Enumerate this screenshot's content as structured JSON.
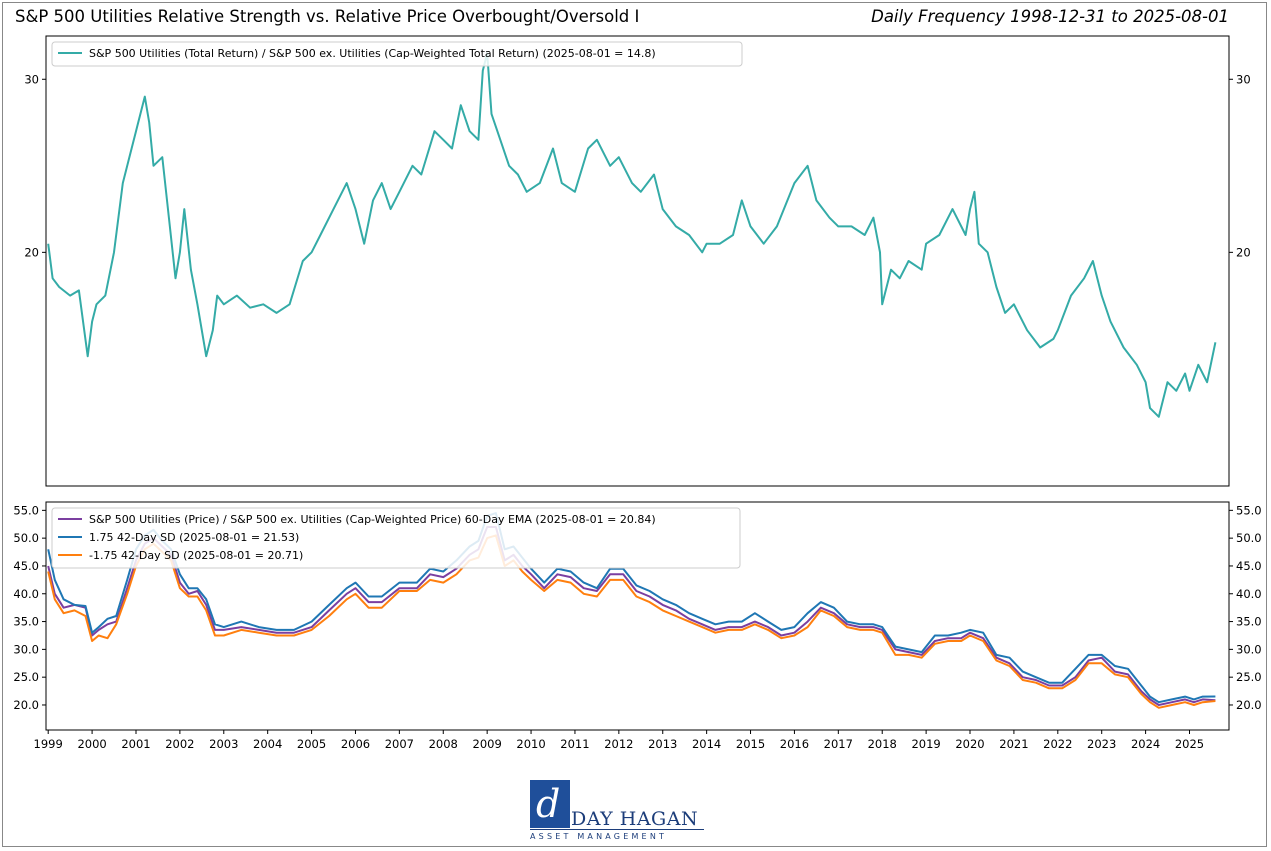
{
  "header": {
    "title": "S&P 500 Utilities Relative Strength vs. Relative Price Overbought/Oversold I",
    "frequency": "Daily Frequency 1998-12-31 to 2025-08-01"
  },
  "logo": {
    "name": "DAY HAGAN",
    "subtitle": "ASSET MANAGEMENT"
  },
  "colors": {
    "teal": "#34aba7",
    "purple": "#7b3fa0",
    "blue": "#1f77b4",
    "orange": "#ff7f0e",
    "brand": "#1c3d7a"
  },
  "chart_data": [
    {
      "type": "line",
      "panel": "top",
      "y_ticks": [
        20,
        30
      ],
      "ylim": [
        6.5,
        32.5
      ],
      "xlim": [
        1998.95,
        2025.9
      ],
      "grid": false,
      "legend": "top-left",
      "series": [
        {
          "name": "S&P 500 Utilities (Total Return) / S&P 500 ex. Utilities (Cap-Weighted Total Return) (2025-08-01 = 14.8)",
          "color": "#34aba7",
          "x": [
            1999.0,
            1999.1,
            1999.25,
            1999.5,
            1999.7,
            1999.9,
            2000.0,
            2000.1,
            2000.3,
            2000.5,
            2000.7,
            2000.9,
            2001.0,
            2001.2,
            2001.3,
            2001.4,
            2001.6,
            2001.75,
            2001.9,
            2002.0,
            2002.1,
            2002.25,
            2002.4,
            2002.6,
            2002.75,
            2002.85,
            2003.0,
            2003.3,
            2003.6,
            2003.9,
            2004.2,
            2004.5,
            2004.8,
            2005.0,
            2005.2,
            2005.5,
            2005.8,
            2006.0,
            2006.2,
            2006.4,
            2006.6,
            2006.8,
            2007.0,
            2007.3,
            2007.5,
            2007.8,
            2008.0,
            2008.2,
            2008.4,
            2008.6,
            2008.8,
            2008.9,
            2009.0,
            2009.1,
            2009.3,
            2009.5,
            2009.7,
            2009.9,
            2010.2,
            2010.5,
            2010.7,
            2011.0,
            2011.3,
            2011.5,
            2011.8,
            2012.0,
            2012.3,
            2012.5,
            2012.8,
            2013.0,
            2013.3,
            2013.6,
            2013.9,
            2014.0,
            2014.3,
            2014.6,
            2014.8,
            2015.0,
            2015.3,
            2015.6,
            2016.0,
            2016.3,
            2016.5,
            2016.8,
            2017.0,
            2017.3,
            2017.6,
            2017.8,
            2017.95,
            2018.0,
            2018.2,
            2018.4,
            2018.6,
            2018.9,
            2019.0,
            2019.3,
            2019.6,
            2019.9,
            2020.0,
            2020.1,
            2020.2,
            2020.4,
            2020.6,
            2020.8,
            2021.0,
            2021.3,
            2021.6,
            2021.9,
            2022.0,
            2022.3,
            2022.6,
            2022.8,
            2023.0,
            2023.2,
            2023.5,
            2023.8,
            2024.0,
            2024.1,
            2024.3,
            2024.5,
            2024.7,
            2024.9,
            2025.0,
            2025.2,
            2025.4,
            2025.59
          ],
          "y": [
            20.5,
            18.5,
            18.0,
            17.5,
            17.8,
            14.0,
            16.0,
            17.0,
            17.5,
            20.0,
            24.0,
            26.0,
            27.0,
            29.0,
            27.5,
            25.0,
            25.5,
            22.0,
            18.5,
            20.0,
            22.5,
            19.0,
            17.0,
            14.0,
            15.5,
            17.5,
            17.0,
            17.5,
            16.8,
            17.0,
            16.5,
            17.0,
            19.5,
            20.0,
            21.0,
            22.5,
            24.0,
            22.5,
            20.5,
            23.0,
            24.0,
            22.5,
            23.5,
            25.0,
            24.5,
            27.0,
            26.5,
            26.0,
            28.5,
            27.0,
            26.5,
            30.5,
            31.5,
            28.0,
            26.5,
            25.0,
            24.5,
            23.5,
            24.0,
            26.0,
            24.0,
            23.5,
            26.0,
            26.5,
            25.0,
            25.5,
            24.0,
            23.5,
            24.5,
            22.5,
            21.5,
            21.0,
            20.0,
            20.5,
            20.5,
            21.0,
            23.0,
            21.5,
            20.5,
            21.5,
            24.0,
            25.0,
            23.0,
            22.0,
            21.5,
            21.5,
            21.0,
            22.0,
            20.0,
            17.0,
            19.0,
            18.5,
            19.5,
            19.0,
            20.5,
            21.0,
            22.5,
            21.0,
            22.5,
            23.5,
            20.5,
            20.0,
            18.0,
            16.5,
            17.0,
            15.5,
            14.5,
            15.0,
            15.5,
            17.5,
            18.5,
            19.5,
            17.5,
            16.0,
            14.5,
            13.5,
            12.5,
            11.0,
            10.5,
            12.5,
            12.0,
            13.0,
            12.0,
            13.5,
            12.5,
            14.8
          ]
        }
      ]
    },
    {
      "type": "line",
      "panel": "bottom",
      "y_ticks": [
        20.0,
        25.0,
        30.0,
        35.0,
        40.0,
        45.0,
        50.0,
        55.0
      ],
      "ylim": [
        15.5,
        56.5
      ],
      "xlim": [
        1998.95,
        2025.9
      ],
      "x_ticks": [
        "1999",
        "2000",
        "2001",
        "2002",
        "2003",
        "2004",
        "2005",
        "2006",
        "2007",
        "2008",
        "2009",
        "2010",
        "2011",
        "2012",
        "2013",
        "2014",
        "2015",
        "2016",
        "2017",
        "2018",
        "2019",
        "2020",
        "2021",
        "2022",
        "2023",
        "2024",
        "2025"
      ],
      "grid": false,
      "legend": "top-left",
      "x": [
        1999.0,
        1999.15,
        1999.35,
        1999.6,
        1999.85,
        2000.0,
        2000.15,
        2000.35,
        2000.55,
        2000.8,
        2001.0,
        2001.2,
        2001.4,
        2001.6,
        2001.8,
        2002.0,
        2002.2,
        2002.4,
        2002.6,
        2002.8,
        2003.0,
        2003.4,
        2003.8,
        2004.2,
        2004.6,
        2005.0,
        2005.4,
        2005.8,
        2006.0,
        2006.3,
        2006.6,
        2007.0,
        2007.4,
        2007.7,
        2008.0,
        2008.3,
        2008.6,
        2008.8,
        2009.0,
        2009.2,
        2009.4,
        2009.6,
        2009.8,
        2010.0,
        2010.3,
        2010.6,
        2010.9,
        2011.2,
        2011.5,
        2011.8,
        2012.1,
        2012.4,
        2012.7,
        2013.0,
        2013.3,
        2013.6,
        2013.9,
        2014.2,
        2014.5,
        2014.8,
        2015.1,
        2015.4,
        2015.7,
        2016.0,
        2016.3,
        2016.6,
        2016.9,
        2017.2,
        2017.5,
        2017.8,
        2018.0,
        2018.3,
        2018.6,
        2018.9,
        2019.2,
        2019.5,
        2019.8,
        2020.0,
        2020.3,
        2020.6,
        2020.9,
        2021.2,
        2021.5,
        2021.8,
        2022.1,
        2022.4,
        2022.7,
        2023.0,
        2023.3,
        2023.6,
        2023.9,
        2024.1,
        2024.3,
        2024.6,
        2024.9,
        2025.1,
        2025.3,
        2025.59
      ],
      "series": [
        {
          "name": "S&P 500 Utilities (Price) / S&P 500 ex. Utilities (Cap-Weighted Price) 60-Day EMA (2025-08-01 = 20.84)",
          "color": "#7b3fa0",
          "y": [
            45.0,
            40.0,
            37.5,
            38.0,
            37.5,
            32.5,
            33.5,
            34.5,
            35.0,
            41.0,
            46.0,
            49.0,
            50.0,
            48.5,
            47.0,
            42.0,
            40.0,
            40.5,
            38.0,
            33.5,
            33.5,
            34.0,
            33.5,
            33.0,
            33.0,
            34.0,
            37.0,
            40.0,
            41.0,
            38.5,
            38.5,
            41.0,
            41.0,
            43.5,
            43.0,
            44.5,
            47.0,
            48.0,
            52.0,
            52.0,
            46.0,
            47.0,
            45.0,
            43.5,
            41.0,
            43.5,
            43.0,
            41.0,
            40.5,
            43.5,
            43.5,
            40.5,
            39.5,
            38.0,
            37.0,
            35.5,
            34.5,
            33.5,
            34.0,
            34.0,
            35.0,
            34.0,
            32.5,
            33.0,
            35.0,
            37.5,
            36.5,
            34.5,
            34.0,
            34.0,
            33.5,
            30.0,
            29.5,
            29.0,
            31.5,
            32.0,
            32.0,
            33.0,
            32.0,
            28.5,
            27.5,
            25.0,
            24.5,
            23.5,
            23.5,
            25.0,
            28.0,
            28.5,
            26.0,
            25.5,
            22.5,
            21.0,
            20.0,
            20.5,
            21.0,
            20.5,
            21.0,
            20.84
          ]
        },
        {
          "name": "1.75 42-Day SD (2025-08-01 = 21.53)",
          "color": "#1f77b4",
          "y": [
            48.0,
            42.5,
            39.0,
            38.0,
            37.8,
            33.0,
            34.0,
            35.5,
            36.0,
            42.5,
            48.0,
            50.5,
            51.5,
            49.5,
            48.0,
            43.5,
            41.0,
            41.0,
            39.0,
            34.5,
            34.0,
            35.0,
            34.0,
            33.5,
            33.5,
            35.0,
            38.0,
            41.0,
            42.0,
            39.5,
            39.5,
            42.0,
            42.0,
            44.5,
            44.0,
            46.0,
            48.5,
            49.5,
            54.0,
            54.5,
            48.0,
            48.5,
            46.5,
            44.5,
            42.0,
            44.5,
            44.0,
            42.0,
            41.0,
            44.5,
            44.5,
            41.5,
            40.5,
            39.0,
            38.0,
            36.5,
            35.5,
            34.5,
            35.0,
            35.0,
            36.5,
            35.0,
            33.5,
            34.0,
            36.5,
            38.5,
            37.5,
            35.0,
            34.5,
            34.5,
            34.0,
            30.5,
            30.0,
            29.5,
            32.5,
            32.5,
            33.0,
            33.5,
            33.0,
            29.0,
            28.5,
            26.0,
            25.0,
            24.0,
            24.0,
            26.5,
            29.0,
            29.0,
            27.0,
            26.5,
            23.5,
            21.5,
            20.5,
            21.0,
            21.5,
            21.0,
            21.5,
            21.53
          ]
        },
        {
          "name": "-1.75 42-Day SD (2025-08-01 = 20.71)",
          "color": "#ff7f0e",
          "y": [
            44.0,
            39.0,
            36.5,
            37.0,
            36.0,
            31.5,
            32.5,
            32.0,
            34.5,
            40.0,
            45.0,
            48.0,
            49.0,
            47.5,
            46.0,
            41.0,
            39.5,
            39.5,
            37.0,
            32.5,
            32.5,
            33.5,
            33.0,
            32.5,
            32.5,
            33.5,
            36.0,
            39.0,
            40.0,
            37.5,
            37.5,
            40.5,
            40.5,
            42.5,
            42.0,
            43.5,
            46.0,
            46.5,
            50.0,
            50.5,
            45.0,
            46.0,
            44.0,
            42.5,
            40.5,
            42.5,
            42.0,
            40.0,
            39.5,
            42.5,
            42.5,
            39.5,
            38.5,
            37.0,
            36.0,
            35.0,
            34.0,
            33.0,
            33.5,
            33.5,
            34.5,
            33.5,
            32.0,
            32.5,
            34.0,
            37.0,
            36.0,
            34.0,
            33.5,
            33.5,
            33.0,
            29.0,
            29.0,
            28.5,
            31.0,
            31.5,
            31.5,
            32.5,
            31.5,
            28.0,
            27.0,
            24.5,
            24.0,
            23.0,
            23.0,
            24.5,
            27.5,
            27.5,
            25.5,
            25.0,
            22.0,
            20.5,
            19.5,
            20.0,
            20.5,
            20.0,
            20.5,
            20.71
          ]
        }
      ]
    }
  ]
}
